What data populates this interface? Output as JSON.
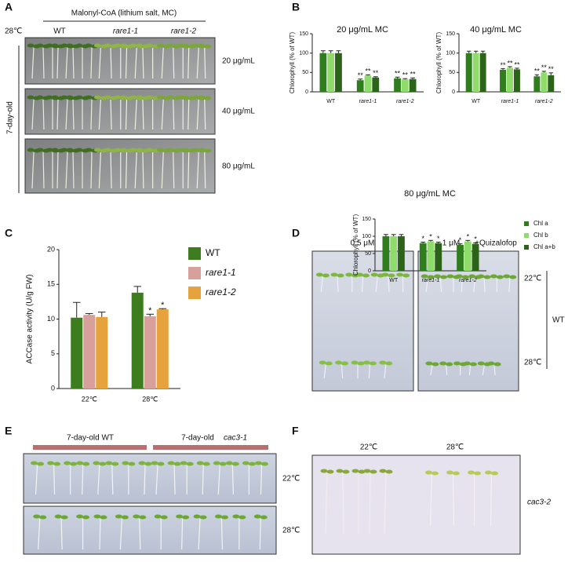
{
  "panel_labels": [
    "A",
    "B",
    "C",
    "D",
    "E",
    "F"
  ],
  "panel_a": {
    "title": "Malonyl-CoA (lithium salt, MC)",
    "temperature": "28℃",
    "columns": [
      "WT",
      "rare1-1",
      "rare1-2"
    ],
    "rows": [
      "20 μg/mL",
      "40 μg/mL",
      "80 μg/mL"
    ],
    "age": "7-day-old"
  },
  "chart_data": [
    {
      "type": "bar",
      "title": "20 μg/mL MC",
      "ylabel": "Chlorophyll (% of WT)",
      "categories": [
        "WT",
        "rare1-1",
        "rare1-2"
      ],
      "series": [
        {
          "color": "#2f7d1c",
          "values": [
            100,
            30,
            35
          ],
          "errors": [
            6,
            3,
            3
          ],
          "significance": [
            null,
            "**",
            "**"
          ]
        },
        {
          "color": "#8fdc6a",
          "values": [
            100,
            42,
            32
          ],
          "errors": [
            6,
            2,
            2
          ],
          "significance": [
            null,
            "**",
            "**"
          ]
        },
        {
          "color": "#2b6418",
          "values": [
            100,
            37,
            33
          ],
          "errors": [
            6,
            2,
            3
          ],
          "significance": [
            null,
            "**",
            "**"
          ]
        }
      ],
      "ylim": [
        0,
        150
      ],
      "yticks": [
        0,
        50,
        100,
        150
      ]
    },
    {
      "type": "bar",
      "title": "40 μg/mL MC",
      "ylabel": "Chlorophyll (% of WT)",
      "categories": [
        "WT",
        "rare1-1",
        "rare1-2"
      ],
      "series": [
        {
          "color": "#2f7d1c",
          "values": [
            100,
            57,
            40
          ],
          "errors": [
            5,
            3,
            4
          ],
          "significance": [
            null,
            "**",
            "**"
          ]
        },
        {
          "color": "#8fdc6a",
          "values": [
            100,
            62,
            50
          ],
          "errors": [
            5,
            3,
            3
          ],
          "significance": [
            null,
            "**",
            "**"
          ]
        },
        {
          "color": "#2b6418",
          "values": [
            100,
            58,
            43
          ],
          "errors": [
            5,
            3,
            6
          ],
          "significance": [
            null,
            "**",
            "**"
          ]
        }
      ],
      "ylim": [
        0,
        150
      ],
      "yticks": [
        0,
        50,
        100,
        150
      ]
    },
    {
      "type": "bar",
      "title": "80 μg/mL MC",
      "ylabel": "Chlorophyll (% of WT)",
      "categories": [
        "WT",
        "rare1-1",
        "rare1-2"
      ],
      "series": [
        {
          "name": "Chl a",
          "color": "#2f7d1c",
          "values": [
            100,
            80,
            75
          ],
          "errors": [
            5,
            3,
            3
          ],
          "significance": [
            null,
            "*",
            "*"
          ]
        },
        {
          "name": "Chl b",
          "color": "#8fdc6a",
          "values": [
            100,
            85,
            85
          ],
          "errors": [
            5,
            3,
            3
          ],
          "significance": [
            null,
            "*",
            "*"
          ]
        },
        {
          "name": "Chl a+b",
          "color": "#2b6418",
          "values": [
            100,
            80,
            78
          ],
          "errors": [
            5,
            3,
            3
          ],
          "significance": [
            null,
            "*",
            "*"
          ]
        }
      ],
      "ylim": [
        0,
        150
      ],
      "yticks": [
        0,
        50,
        100,
        150
      ],
      "legend": "right"
    },
    {
      "type": "bar",
      "ylabel": "ACCase activity (U/g FW)",
      "categories": [
        "22℃",
        "28℃"
      ],
      "series": [
        {
          "name": "WT",
          "color": "#3d7d1f",
          "values": [
            10.2,
            13.8
          ],
          "errors": [
            2.2,
            0.9
          ],
          "significance": [
            null,
            null
          ]
        },
        {
          "name": "rare1-1",
          "color": "#d8a09a",
          "values": [
            10.6,
            10.4
          ],
          "errors": [
            0.2,
            0.3
          ],
          "significance": [
            null,
            "*"
          ]
        },
        {
          "name": "rare1-2",
          "color": "#e6a23c",
          "values": [
            10.3,
            11.4
          ],
          "errors": [
            0.7,
            0.1
          ],
          "significance": [
            null,
            "*"
          ]
        }
      ],
      "ylim": [
        0,
        20
      ],
      "yticks": [
        0,
        5,
        10,
        15,
        20
      ],
      "legend": "right"
    }
  ],
  "panel_d": {
    "concentrations": [
      "0.5 μM",
      "1 μM"
    ],
    "treatment": "+Quizalofop",
    "temperatures": [
      "22℃",
      "28℃"
    ],
    "genotype": "WT"
  },
  "panel_e": {
    "groups": [
      {
        "age": "7-day-old WT"
      },
      {
        "age": "7-day-old",
        "genotype": "cac3-1"
      }
    ],
    "temperatures": [
      "22℃",
      "28℃"
    ]
  },
  "panel_f": {
    "temperatures": [
      "22℃",
      "28℃"
    ],
    "genotype": "cac3-2"
  }
}
